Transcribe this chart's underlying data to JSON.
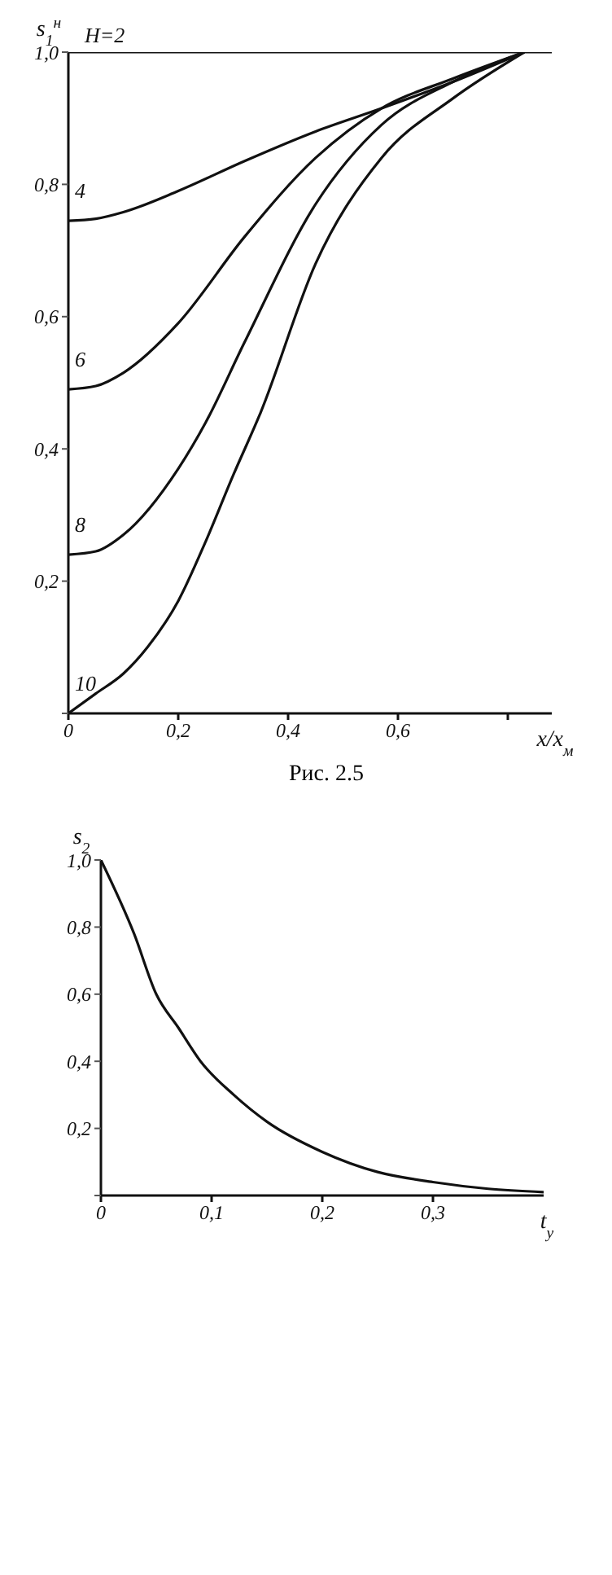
{
  "chart_data": [
    {
      "type": "line",
      "ylabel": "s$_{1}$$^{н}$",
      "xlabel": "x/x$_{м}$",
      "annotations": [
        "Рис. 2.5"
      ],
      "xlim": [
        0,
        0.88
      ],
      "ylim": [
        0,
        1.0
      ],
      "xticks": [
        0,
        {
          "value": 0.2,
          "label": "0,2"
        },
        {
          "value": 0.4,
          "label": "0,4"
        },
        {
          "value": 0.6,
          "label": "0,6"
        },
        {
          "value": 0.8,
          "label": null
        }
      ],
      "yticks": [
        {
          "value": 0,
          "label": null
        },
        {
          "value": 0.2,
          "label": "0,2"
        },
        {
          "value": 0.4,
          "label": "0,4"
        },
        {
          "value": 0.6,
          "label": "0,6"
        },
        {
          "value": 0.8,
          "label": "0,8"
        },
        {
          "value": 1.0,
          "label": "1,0"
        }
      ],
      "color": "#111111",
      "series": [
        {
          "name": "H=2",
          "x": [
            0,
            0.88
          ],
          "values": [
            1.0,
            1.0
          ]
        },
        {
          "name": "4",
          "x": [
            0,
            0.05,
            0.1,
            0.2,
            0.32,
            0.45,
            0.57,
            0.7,
            0.83
          ],
          "values": [
            0.745,
            0.748,
            0.758,
            0.79,
            0.835,
            0.88,
            0.915,
            0.955,
            1.0
          ]
        },
        {
          "name": "6",
          "x": [
            0,
            0.05,
            0.1,
            0.2,
            0.32,
            0.45,
            0.57,
            0.7,
            0.83
          ],
          "values": [
            0.49,
            0.495,
            0.515,
            0.59,
            0.72,
            0.84,
            0.915,
            0.96,
            1.0
          ]
        },
        {
          "name": "8",
          "x": [
            0,
            0.05,
            0.1,
            0.2,
            0.25,
            0.32,
            0.45,
            0.57,
            0.7,
            0.83
          ],
          "values": [
            0.24,
            0.245,
            0.27,
            0.37,
            0.44,
            0.56,
            0.77,
            0.89,
            0.955,
            1.0
          ]
        },
        {
          "name": "10",
          "x": [
            0,
            0.05,
            0.1,
            0.144,
            0.2,
            0.25,
            0.3,
            0.35,
            0.45,
            0.57,
            0.7,
            0.83
          ],
          "values": [
            0,
            0.03,
            0.06,
            0.1,
            0.17,
            0.26,
            0.36,
            0.455,
            0.68,
            0.84,
            0.93,
            1.0
          ]
        }
      ]
    },
    {
      "type": "line",
      "ylabel": "s$_{2}$",
      "xlabel": "t$_{y}$",
      "xlim": [
        0,
        0.4
      ],
      "ylim": [
        0,
        1.0
      ],
      "xticks": [
        0,
        {
          "value": 0.1,
          "label": "0,1"
        },
        {
          "value": 0.2,
          "label": "0,2"
        },
        {
          "value": 0.3,
          "label": "0,3"
        }
      ],
      "yticks": [
        {
          "value": 0,
          "label": null
        },
        {
          "value": 0.2,
          "label": "0,2"
        },
        {
          "value": 0.4,
          "label": "0,4"
        },
        {
          "value": 0.6,
          "label": "0,6"
        },
        {
          "value": 0.8,
          "label": "0,8"
        },
        {
          "value": 1.0,
          "label": "1,0"
        }
      ],
      "color": "#111111",
      "series": [
        {
          "x": [
            0,
            0.03,
            0.05,
            0.07,
            0.09,
            0.12,
            0.15,
            0.2,
            0.25,
            0.3,
            0.35,
            0.4
          ],
          "values": [
            1.0,
            0.78,
            0.6,
            0.5,
            0.4,
            0.3,
            0.22,
            0.13,
            0.07,
            0.04,
            0.02,
            0.01
          ]
        }
      ]
    }
  ]
}
